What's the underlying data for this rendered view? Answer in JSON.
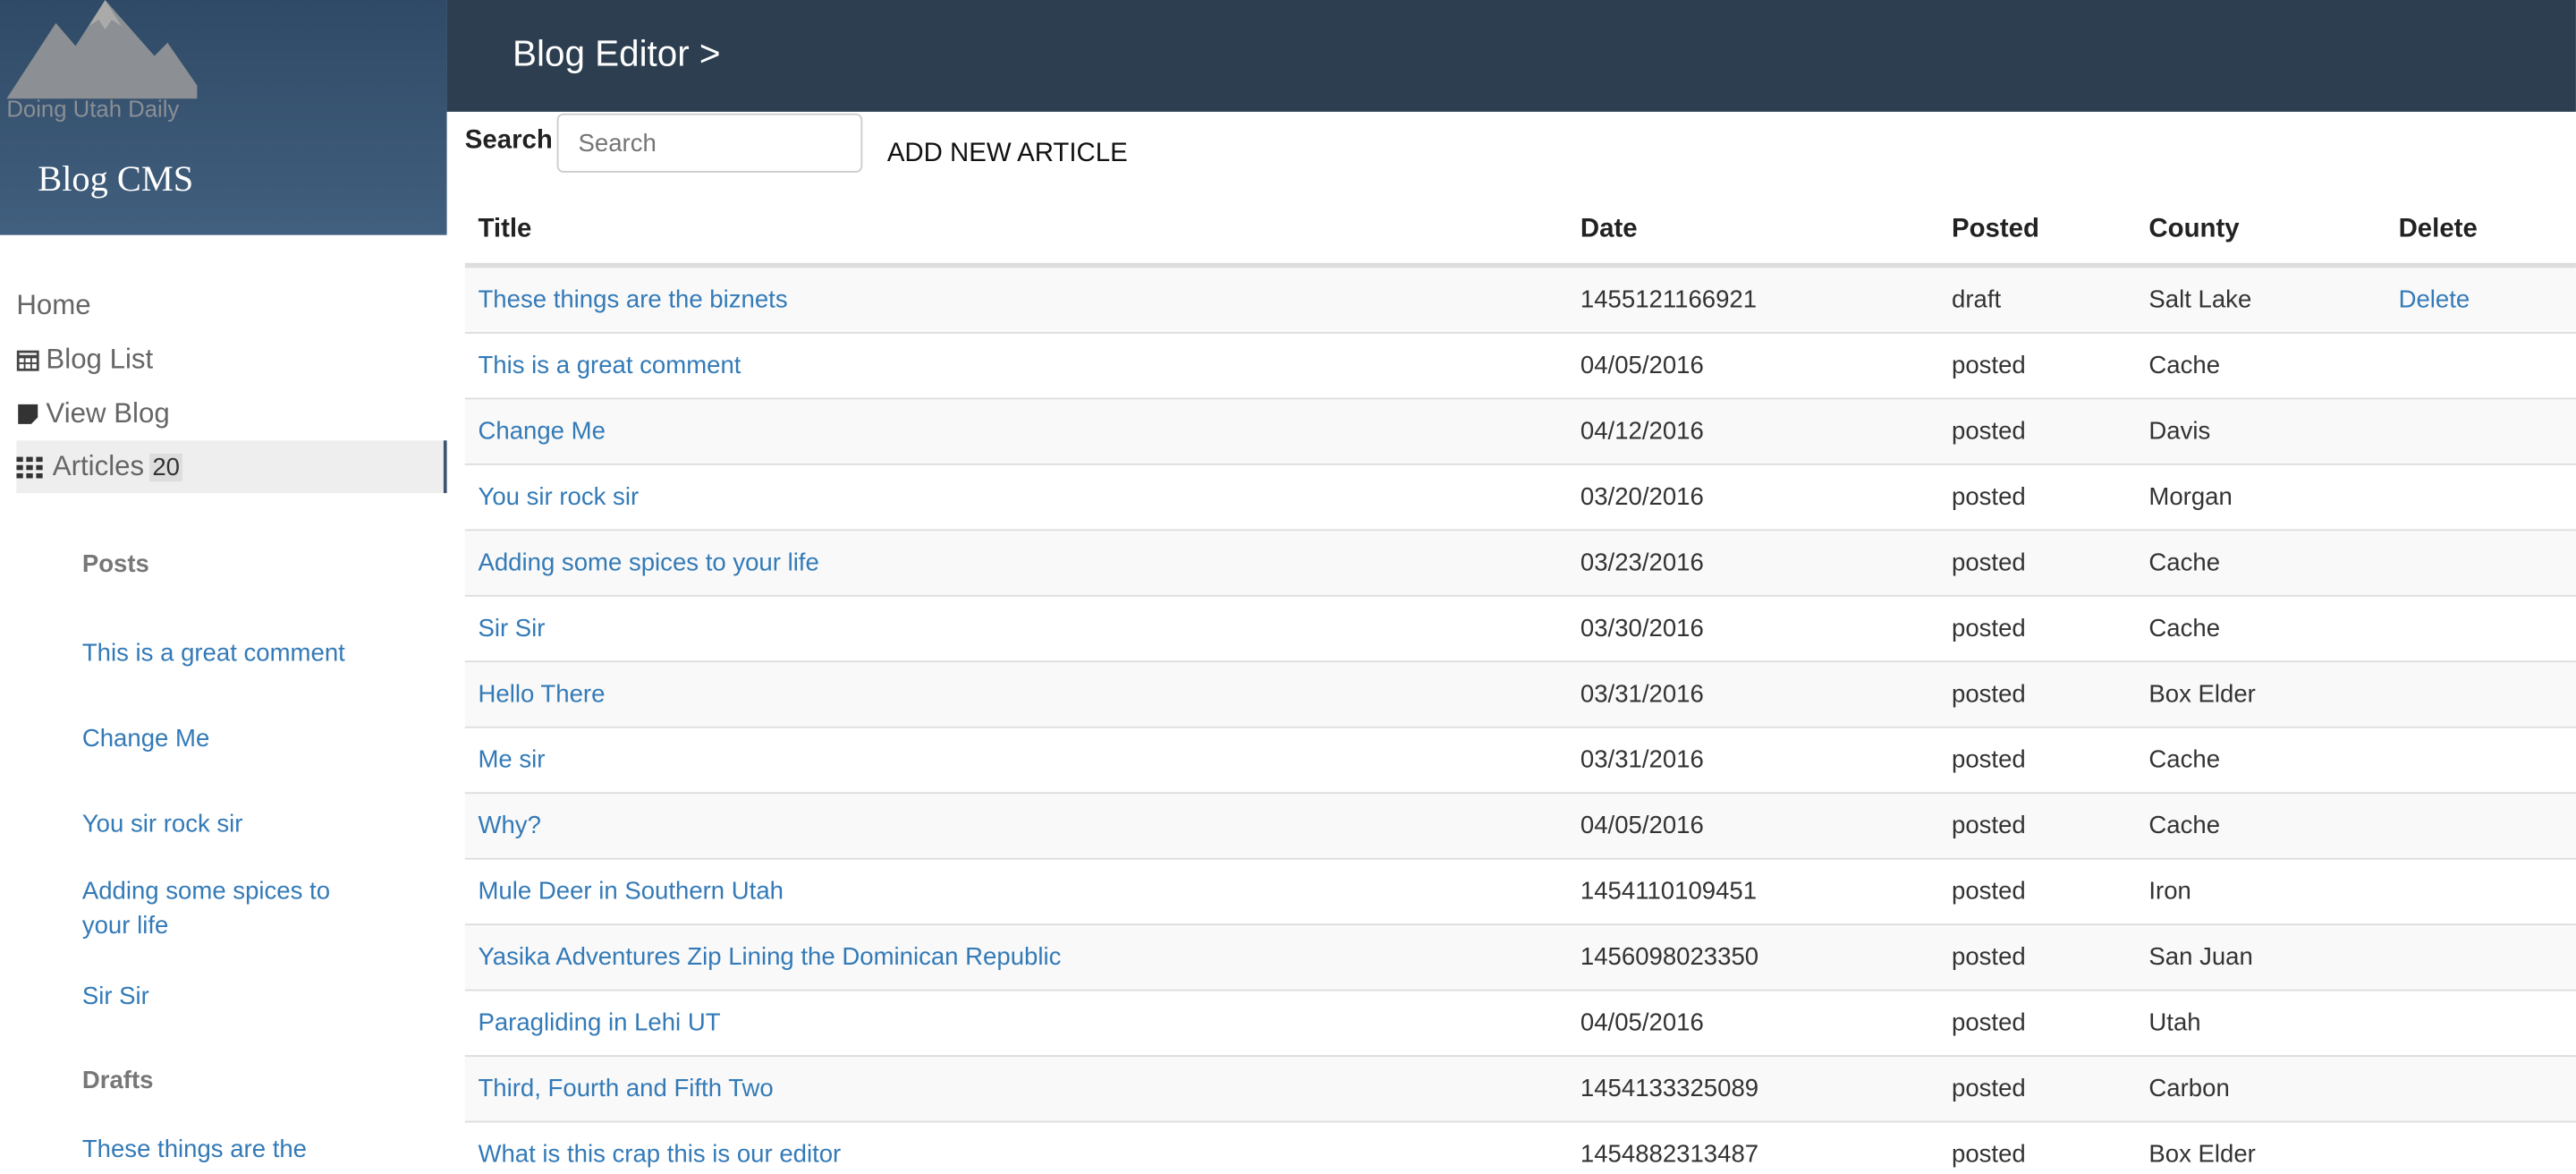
{
  "sidebar": {
    "logo_text": "Doing Utah Daily",
    "brand": "Blog CMS",
    "nav": [
      {
        "label": "Home"
      },
      {
        "label": "Blog List"
      },
      {
        "label": "View Blog"
      },
      {
        "label": "Articles",
        "badge": "20"
      }
    ],
    "posts_heading": "Posts",
    "posts": [
      "This is a great comment",
      "Change Me",
      "You sir rock sir",
      "Adding some spices to your life",
      "Sir Sir"
    ],
    "drafts_heading": "Drafts",
    "drafts": [
      "These things are the biznets"
    ]
  },
  "header": {
    "title": "Blog Editor >"
  },
  "toolbar": {
    "search_label": "Search",
    "search_placeholder": "Search",
    "add_button": "ADD NEW ARTICLE"
  },
  "table": {
    "columns": [
      "Title",
      "Date",
      "Posted",
      "County",
      "Delete"
    ],
    "rows": [
      [
        "These things are the biznets",
        "1455121166921",
        "draft",
        "Salt Lake",
        "Delete"
      ],
      [
        "This is a great comment",
        "04/05/2016",
        "posted",
        "Cache",
        null
      ],
      [
        "Change Me",
        "04/12/2016",
        "posted",
        "Davis",
        null
      ],
      [
        "You sir rock sir",
        "03/20/2016",
        "posted",
        "Morgan",
        null
      ],
      [
        "Adding some spices to your life",
        "03/23/2016",
        "posted",
        "Cache",
        null
      ],
      [
        "Sir Sir",
        "03/30/2016",
        "posted",
        "Cache",
        null
      ],
      [
        "Hello There",
        "03/31/2016",
        "posted",
        "Box Elder",
        null
      ],
      [
        "Me sir",
        "03/31/2016",
        "posted",
        "Cache",
        null
      ],
      [
        "Why?",
        "04/05/2016",
        "posted",
        "Cache",
        null
      ],
      [
        "Mule Deer in Southern Utah",
        "1454110109451",
        "posted",
        "Iron",
        null
      ],
      [
        "Yasika Adventures Zip Lining the Dominican Republic",
        "1456098023350",
        "posted",
        "San Juan",
        null
      ],
      [
        "Paragliding in Lehi UT",
        "04/05/2016",
        "posted",
        "Utah",
        null
      ],
      [
        "Third, Fourth and Fifth Two",
        "1454133325089",
        "posted",
        "Carbon",
        null
      ],
      [
        "What is this crap this is our editor",
        "1454882313487",
        "posted",
        "Box Elder",
        null
      ]
    ]
  }
}
